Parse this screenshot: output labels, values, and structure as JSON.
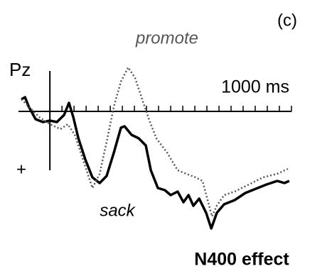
{
  "chart_data": {
    "type": "line",
    "panel_label": "(c)",
    "channel": "Pz",
    "x_end_label": "1000 ms",
    "polarity_label": "+",
    "caption": "N400 effect",
    "xlim": [
      -130,
      1000
    ],
    "ylim": [
      -3.5,
      9
    ],
    "y_inverted": true,
    "xticks": [
      0,
      50,
      100,
      150,
      200,
      250,
      300,
      350,
      400,
      450,
      500,
      550,
      600,
      650,
      700,
      750,
      800,
      850,
      900,
      950,
      1000
    ],
    "series": [
      {
        "name": "sack",
        "color": "#000000",
        "style": "solid",
        "x": [
          -118,
          -103,
          -88,
          -59,
          -29,
          0,
          29,
          59,
          79,
          97,
          118,
          147,
          176,
          206,
          235,
          265,
          294,
          309,
          338,
          368,
          397,
          418,
          447,
          476,
          500,
          529,
          553,
          574,
          594,
          618,
          647,
          668,
          691,
          721,
          765,
          809,
          853,
          897,
          941,
          971,
          991
        ],
        "values": [
          -0.85,
          -1.0,
          -0.35,
          0.55,
          0.75,
          0.65,
          0.75,
          0.25,
          -0.6,
          0.4,
          1.9,
          3.4,
          4.65,
          5.05,
          4.55,
          2.9,
          1.15,
          1.05,
          1.65,
          1.9,
          2.4,
          4.15,
          5.4,
          5.55,
          5.9,
          5.65,
          6.4,
          5.9,
          6.65,
          6.15,
          7.15,
          8.25,
          7.15,
          6.55,
          6.25,
          5.75,
          5.45,
          5.15,
          4.9,
          5.05,
          4.9
        ]
      },
      {
        "name": "promote",
        "color": "#555555",
        "style": "dotted",
        "x": [
          -118,
          -88,
          -44,
          0,
          44,
          74,
          103,
          147,
          176,
          206,
          235,
          265,
          294,
          324,
          353,
          382,
          412,
          441,
          485,
          529,
          565,
          603,
          632,
          671,
          691,
          721,
          765,
          824,
          882,
          941,
          985
        ],
        "values": [
          -0.85,
          -0.35,
          0.4,
          0.9,
          1.25,
          0.9,
          1.65,
          3.9,
          5.4,
          4.4,
          2.15,
          -0.35,
          -2.1,
          -3.1,
          -2.35,
          -0.85,
          0.65,
          1.9,
          2.9,
          4.15,
          4.4,
          4.65,
          4.9,
          7.4,
          6.65,
          5.9,
          5.65,
          5.15,
          4.65,
          4.4,
          4.05
        ]
      }
    ]
  }
}
